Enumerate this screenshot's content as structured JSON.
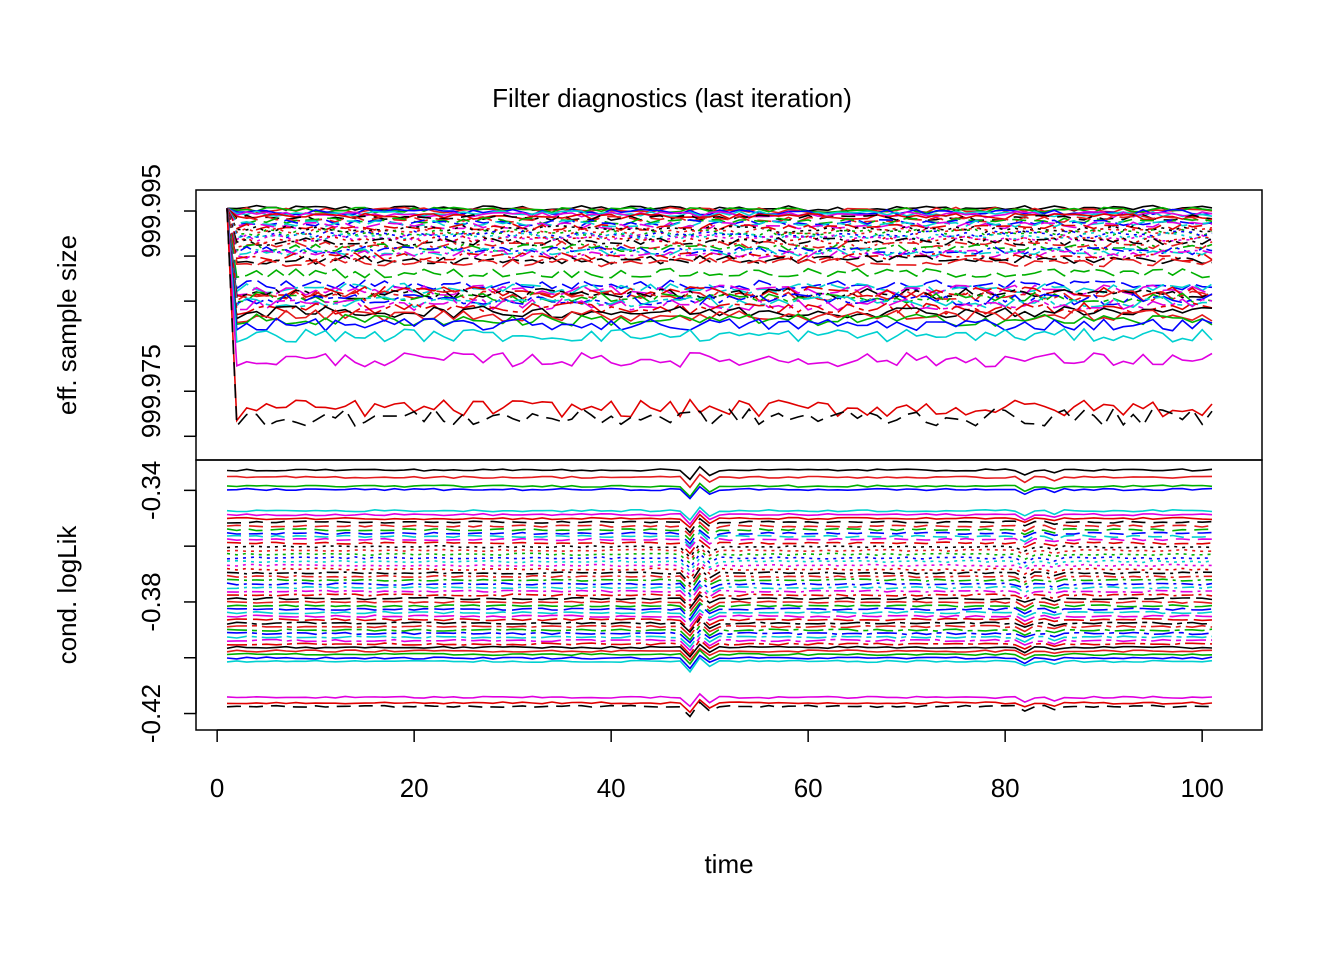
{
  "chart_data": {
    "type": "line",
    "title": "Filter diagnostics (last iteration)",
    "xlabel": "time",
    "x_ticks": [
      "0",
      "20",
      "40",
      "60",
      "80",
      "100"
    ],
    "x_tick_values": [
      0,
      20,
      40,
      60,
      80,
      100
    ],
    "xlim": [
      1,
      101
    ],
    "panels": [
      {
        "ylabel": "eff. sample size",
        "y_ticks": [
          "999.975",
          "999.995"
        ],
        "y_tick_values": [
          999.975,
          999.995
        ],
        "minor_tick_values": [
          999.97,
          999.98,
          999.985,
          999.99
        ],
        "ylim": [
          999.9687,
          999.996
        ],
        "levels": [
          999.9953,
          999.9951,
          999.9951,
          999.9949,
          999.9947,
          999.9946,
          999.9944,
          999.9943,
          999.9941,
          999.9939,
          999.9937,
          999.9936,
          999.9934,
          999.9932,
          999.993,
          999.9928,
          999.9926,
          999.9924,
          999.9922,
          999.992,
          999.9918,
          999.9916,
          999.9912,
          999.9909,
          999.9906,
          999.9904,
          999.9902,
          999.9899,
          999.9896,
          999.9893,
          999.9881,
          999.9868,
          999.9864,
          999.9862,
          999.986,
          999.9858,
          999.9856,
          999.9854,
          999.9852,
          999.9849,
          999.9846,
          999.9842,
          999.9838,
          999.9834,
          999.9829,
          999.9824,
          999.9812,
          999.9785,
          999.9731,
          999.9721
        ]
      },
      {
        "ylabel": "cond. logLik",
        "y_ticks": [
          "-0.42",
          "-0.38",
          "-0.34"
        ],
        "y_tick_values": [
          -0.42,
          -0.38,
          -0.34
        ],
        "minor_tick_values": [
          -0.4,
          -0.36
        ],
        "ylim": [
          -0.4216,
          -0.3327
        ],
        "levels": [
          -0.3327,
          -0.3353,
          -0.3385,
          -0.3397,
          -0.3473,
          -0.3487,
          -0.3501,
          -0.3514,
          -0.3528,
          -0.3541,
          -0.3554,
          -0.3565,
          -0.3576,
          -0.3589,
          -0.3602,
          -0.3615,
          -0.3629,
          -0.3642,
          -0.3655,
          -0.3669,
          -0.3683,
          -0.3696,
          -0.3709,
          -0.3722,
          -0.3736,
          -0.3749,
          -0.3762,
          -0.3775,
          -0.3788,
          -0.3801,
          -0.3814,
          -0.3826,
          -0.3838,
          -0.3851,
          -0.3863,
          -0.3876,
          -0.3888,
          -0.3901,
          -0.3913,
          -0.3926,
          -0.3938,
          -0.3951,
          -0.3963,
          -0.3976,
          -0.3988,
          -0.4001,
          -0.4013,
          -0.4142,
          -0.4162,
          -0.4174
        ]
      }
    ],
    "colors": [
      "#000000",
      "#DF536B",
      "#61D04F",
      "#2297E6",
      "#28E2E5",
      "#CD0BBC",
      "#F5C710",
      "#9E9E9E"
    ],
    "palette_used": [
      "#000000",
      "#E41A1C",
      "#00B000",
      "#0000FF",
      "#00D0D0",
      "#E000E0",
      "#E00000"
    ]
  }
}
